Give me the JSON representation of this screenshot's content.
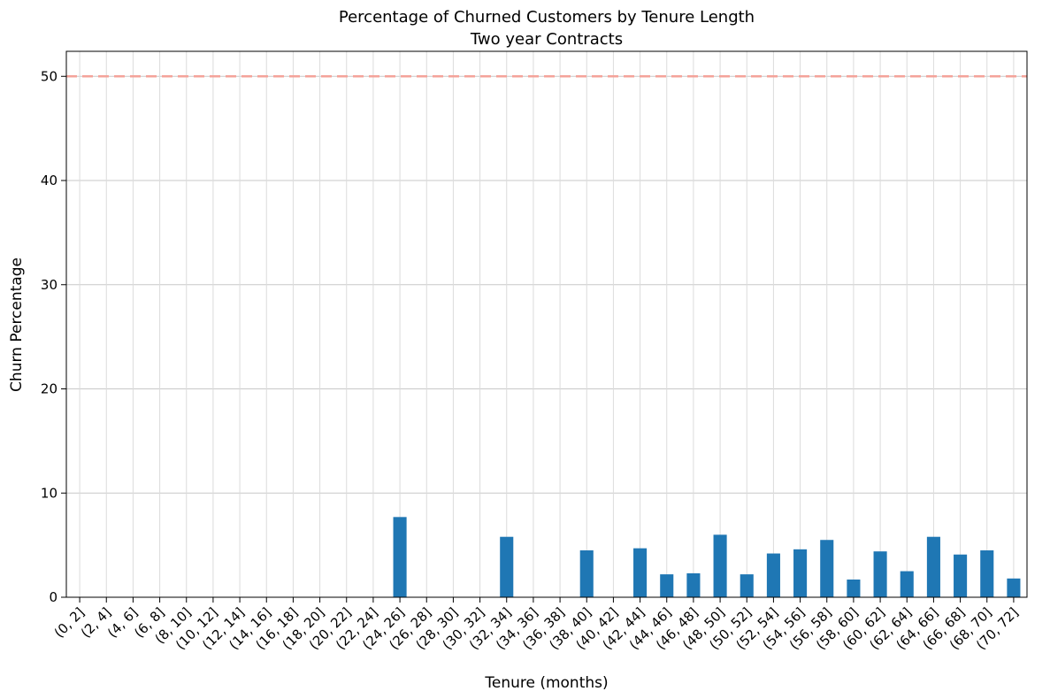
{
  "chart_data": {
    "type": "bar",
    "title": "Percentage of Churned Customers by Tenure Length",
    "subtitle": "Two year Contracts",
    "xlabel": "Tenure (months)",
    "ylabel": "Churn Percentage",
    "ylim": [
      0,
      52.4
    ],
    "yticks": [
      0,
      10,
      20,
      30,
      40,
      50
    ],
    "grid": true,
    "bar_color": "#1f77b4",
    "reference_line": {
      "value": 50,
      "color": "#f4a39a",
      "style": "dashed"
    },
    "categories": [
      "(0, 2]",
      "(2, 4]",
      "(4, 6]",
      "(6, 8]",
      "(8, 10]",
      "(10, 12]",
      "(12, 14]",
      "(14, 16]",
      "(16, 18]",
      "(18, 20]",
      "(20, 22]",
      "(22, 24]",
      "(24, 26]",
      "(26, 28]",
      "(28, 30]",
      "(30, 32]",
      "(32, 34]",
      "(34, 36]",
      "(36, 38]",
      "(38, 40]",
      "(40, 42]",
      "(42, 44]",
      "(44, 46]",
      "(46, 48]",
      "(48, 50]",
      "(50, 52]",
      "(52, 54]",
      "(54, 56]",
      "(56, 58]",
      "(58, 60]",
      "(60, 62]",
      "(62, 64]",
      "(64, 66]",
      "(66, 68]",
      "(68, 70]",
      "(70, 72]"
    ],
    "values": [
      0,
      0,
      0,
      0,
      0,
      0,
      0,
      0,
      0,
      0,
      0,
      0,
      7.7,
      0,
      0,
      0,
      5.8,
      0,
      0,
      4.5,
      0,
      4.7,
      2.2,
      2.3,
      6.0,
      2.2,
      4.2,
      4.6,
      5.5,
      1.7,
      4.4,
      2.5,
      5.8,
      4.1,
      4.5,
      1.8
    ]
  }
}
